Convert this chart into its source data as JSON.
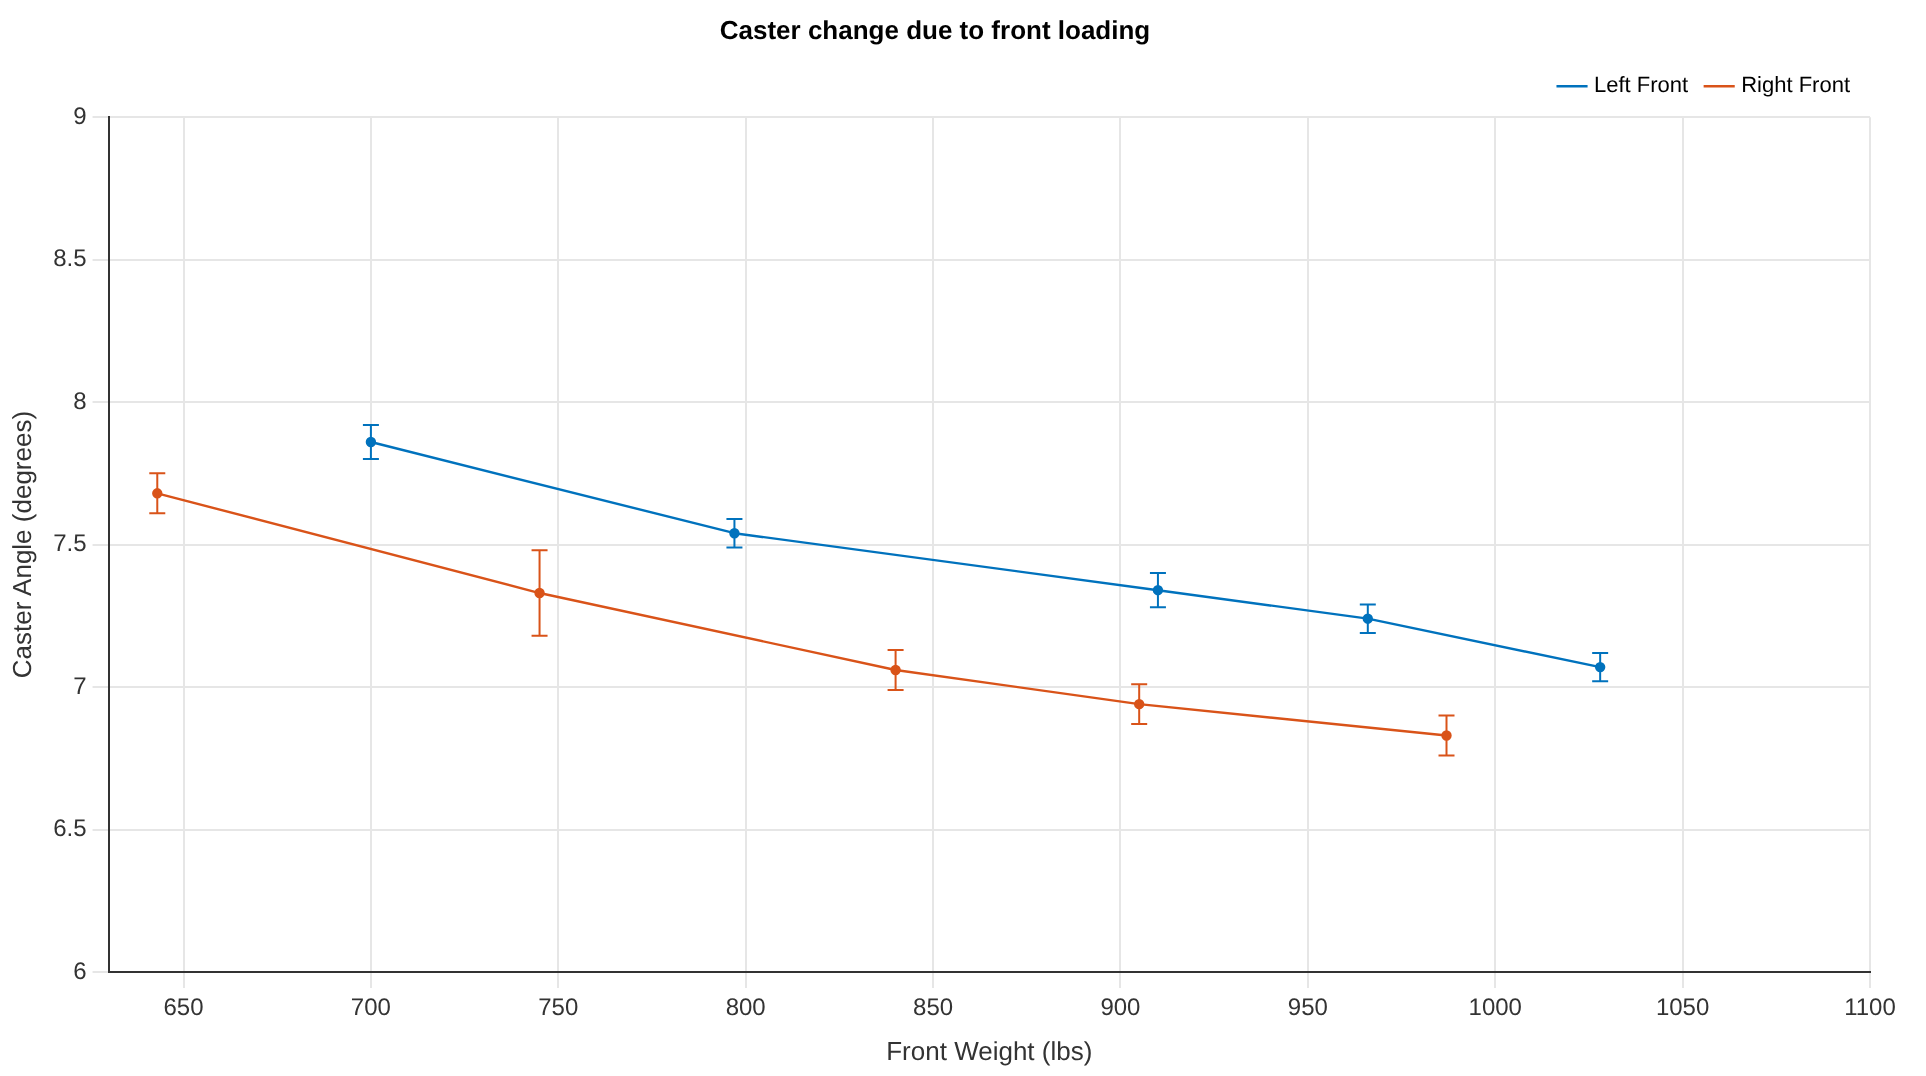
{
  "chart_data": {
    "type": "line",
    "title": "Caster change due to front loading",
    "xlabel": "Front Weight (lbs)",
    "ylabel": "Caster Angle (degrees)",
    "xlim": [
      630,
      1100
    ],
    "xticks": [
      650,
      700,
      750,
      800,
      850,
      900,
      950,
      1000,
      1050,
      1100
    ],
    "ylim": [
      6,
      9
    ],
    "yticks": [
      6,
      6.5,
      7,
      7.5,
      8,
      8.5,
      9
    ],
    "grid": true,
    "legend": "top right",
    "marker": "circle",
    "series": [
      {
        "name": "Left Front",
        "color": "#0072bd",
        "x": [
          700,
          797,
          910,
          966,
          1028
        ],
        "values": [
          7.86,
          7.54,
          7.34,
          7.24,
          7.07
        ],
        "errors": [
          0.06,
          0.05,
          0.06,
          0.05,
          0.05
        ]
      },
      {
        "name": "Right Front",
        "color": "#d95319",
        "x": [
          643,
          745,
          840,
          905,
          987
        ],
        "values": [
          7.68,
          7.33,
          7.06,
          6.94,
          6.83
        ],
        "errors": [
          0.07,
          0.15,
          0.07,
          0.07,
          0.07
        ]
      }
    ]
  }
}
